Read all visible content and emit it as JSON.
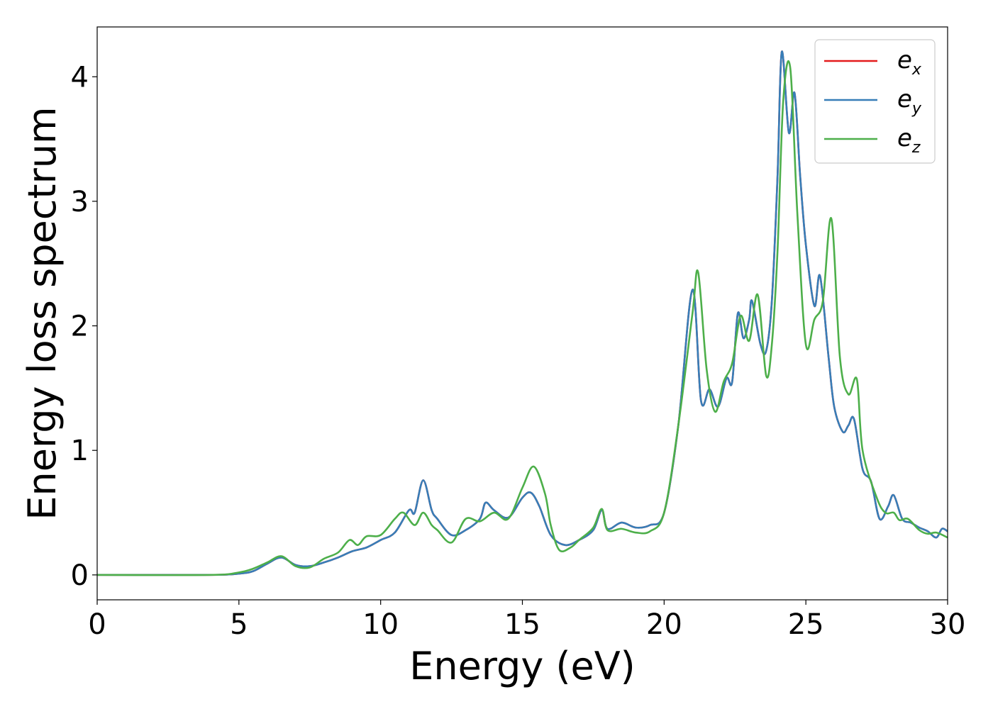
{
  "chart_data": {
    "type": "line",
    "xlabel": "Energy (eV)",
    "ylabel": "Energy loss spectrum",
    "xlim": [
      0,
      30
    ],
    "ylim": [
      -0.2,
      4.4
    ],
    "xticks": [
      0,
      5,
      10,
      15,
      20,
      25,
      30
    ],
    "xtick_labels": [
      "0",
      "5",
      "10",
      "15",
      "20",
      "25",
      "30"
    ],
    "yticks": [
      0,
      1,
      2,
      3,
      4
    ],
    "ytick_labels": [
      "0",
      "1",
      "2",
      "3",
      "4"
    ],
    "grid": false,
    "legend_position": "top-right",
    "series": [
      {
        "name": "e_x",
        "label_base": "e",
        "label_sub": "x",
        "color": "#e41a1c",
        "x": [
          0,
          4.0,
          5.0,
          5.5,
          6.0,
          6.5,
          7.0,
          7.5,
          8.0,
          8.5,
          9.0,
          9.5,
          10.0,
          10.5,
          11.0,
          11.2,
          11.5,
          11.8,
          12.0,
          12.5,
          13.0,
          13.5,
          13.7,
          14.0,
          14.5,
          15.0,
          15.3,
          15.6,
          16.0,
          16.5,
          17.0,
          17.5,
          17.8,
          18.0,
          18.5,
          19.0,
          19.5,
          20.0,
          20.5,
          21.0,
          21.3,
          21.6,
          21.9,
          22.2,
          22.4,
          22.6,
          22.8,
          23.0,
          23.1,
          23.4,
          23.6,
          23.8,
          24.0,
          24.15,
          24.4,
          24.6,
          24.8,
          25.0,
          25.3,
          25.5,
          25.8,
          26.0,
          26.3,
          26.5,
          26.7,
          27.0,
          27.3,
          27.6,
          27.9,
          28.1,
          28.4,
          28.7,
          29.0,
          29.3,
          29.6,
          29.8,
          30.0
        ],
        "y": [
          0,
          0.0,
          0.01,
          0.03,
          0.09,
          0.14,
          0.08,
          0.07,
          0.1,
          0.14,
          0.19,
          0.22,
          0.28,
          0.34,
          0.52,
          0.5,
          0.76,
          0.52,
          0.45,
          0.32,
          0.36,
          0.45,
          0.58,
          0.52,
          0.46,
          0.62,
          0.66,
          0.55,
          0.32,
          0.24,
          0.28,
          0.36,
          0.52,
          0.37,
          0.42,
          0.38,
          0.4,
          0.5,
          1.2,
          2.29,
          1.4,
          1.49,
          1.35,
          1.58,
          1.55,
          2.1,
          1.9,
          2.05,
          2.2,
          1.85,
          1.8,
          2.2,
          3.2,
          4.2,
          3.55,
          3.87,
          3.2,
          2.65,
          2.16,
          2.4,
          1.75,
          1.35,
          1.15,
          1.2,
          1.25,
          0.85,
          0.75,
          0.45,
          0.55,
          0.64,
          0.45,
          0.42,
          0.38,
          0.35,
          0.3,
          0.37,
          0.35
        ]
      },
      {
        "name": "e_y",
        "label_base": "e",
        "label_sub": "y",
        "color": "#377eb8",
        "x": [
          0,
          4.0,
          5.0,
          5.5,
          6.0,
          6.5,
          7.0,
          7.5,
          8.0,
          8.5,
          9.0,
          9.5,
          10.0,
          10.5,
          11.0,
          11.2,
          11.5,
          11.8,
          12.0,
          12.5,
          13.0,
          13.5,
          13.7,
          14.0,
          14.5,
          15.0,
          15.3,
          15.6,
          16.0,
          16.5,
          17.0,
          17.5,
          17.8,
          18.0,
          18.5,
          19.0,
          19.5,
          20.0,
          20.5,
          21.0,
          21.3,
          21.6,
          21.9,
          22.2,
          22.4,
          22.6,
          22.8,
          23.0,
          23.1,
          23.4,
          23.6,
          23.8,
          24.0,
          24.15,
          24.4,
          24.6,
          24.8,
          25.0,
          25.3,
          25.5,
          25.8,
          26.0,
          26.3,
          26.5,
          26.7,
          27.0,
          27.3,
          27.6,
          27.9,
          28.1,
          28.4,
          28.7,
          29.0,
          29.3,
          29.6,
          29.8,
          30.0
        ],
        "y": [
          0,
          0.0,
          0.01,
          0.03,
          0.09,
          0.14,
          0.08,
          0.07,
          0.1,
          0.14,
          0.19,
          0.22,
          0.28,
          0.34,
          0.52,
          0.5,
          0.76,
          0.52,
          0.45,
          0.32,
          0.36,
          0.45,
          0.58,
          0.52,
          0.46,
          0.62,
          0.66,
          0.55,
          0.32,
          0.24,
          0.28,
          0.36,
          0.52,
          0.37,
          0.42,
          0.38,
          0.4,
          0.5,
          1.2,
          2.29,
          1.4,
          1.49,
          1.35,
          1.58,
          1.55,
          2.1,
          1.9,
          2.05,
          2.2,
          1.85,
          1.8,
          2.2,
          3.2,
          4.2,
          3.55,
          3.87,
          3.2,
          2.65,
          2.16,
          2.4,
          1.75,
          1.35,
          1.15,
          1.2,
          1.25,
          0.85,
          0.75,
          0.45,
          0.55,
          0.64,
          0.45,
          0.42,
          0.38,
          0.35,
          0.3,
          0.37,
          0.35
        ]
      },
      {
        "name": "e_z",
        "label_base": "e",
        "label_sub": "z",
        "color": "#4daf4a",
        "x": [
          0,
          4.0,
          5.0,
          5.5,
          6.0,
          6.5,
          7.0,
          7.5,
          8.0,
          8.5,
          8.9,
          9.2,
          9.5,
          10.0,
          10.5,
          10.8,
          11.2,
          11.5,
          11.8,
          12.0,
          12.5,
          13.0,
          13.5,
          14.0,
          14.5,
          15.0,
          15.4,
          15.8,
          16.0,
          16.3,
          16.7,
          17.0,
          17.5,
          17.8,
          18.0,
          18.5,
          19.0,
          19.5,
          20.0,
          20.5,
          21.0,
          21.2,
          21.5,
          21.8,
          22.1,
          22.4,
          22.7,
          23.0,
          23.3,
          23.6,
          23.8,
          24.0,
          24.2,
          24.45,
          24.7,
          25.0,
          25.3,
          25.6,
          25.9,
          26.2,
          26.5,
          26.8,
          27.0,
          27.5,
          27.8,
          28.1,
          28.3,
          28.6,
          29.0,
          29.3,
          29.6,
          30.0
        ],
        "y": [
          0,
          0.0,
          0.02,
          0.05,
          0.1,
          0.15,
          0.07,
          0.06,
          0.13,
          0.18,
          0.28,
          0.24,
          0.31,
          0.32,
          0.45,
          0.5,
          0.4,
          0.5,
          0.4,
          0.36,
          0.26,
          0.45,
          0.43,
          0.5,
          0.45,
          0.7,
          0.87,
          0.65,
          0.4,
          0.2,
          0.22,
          0.28,
          0.38,
          0.53,
          0.36,
          0.37,
          0.34,
          0.35,
          0.5,
          1.2,
          2.1,
          2.43,
          1.65,
          1.31,
          1.55,
          1.7,
          2.08,
          1.88,
          2.25,
          1.6,
          1.85,
          2.6,
          3.8,
          4.07,
          2.9,
          1.85,
          2.05,
          2.2,
          2.86,
          1.75,
          1.45,
          1.57,
          1.0,
          0.62,
          0.5,
          0.5,
          0.44,
          0.45,
          0.36,
          0.33,
          0.34,
          0.3
        ]
      }
    ]
  }
}
